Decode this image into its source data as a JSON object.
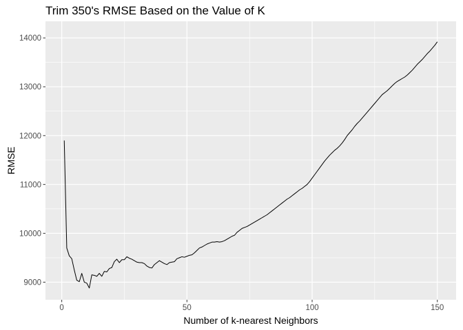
{
  "chart_data": {
    "type": "line",
    "title": "Trim 350's RMSE Based on the Value of K",
    "xlabel": "Number of k-nearest Neighbors",
    "ylabel": "RMSE",
    "xlim": [
      -6.5,
      157.5
    ],
    "ylim": [
      8640,
      14340
    ],
    "xticks": [
      0,
      50,
      100,
      150
    ],
    "yticks": [
      9000,
      10000,
      11000,
      12000,
      13000,
      14000
    ],
    "grid": true,
    "legend": "none",
    "colors": {
      "panel_bg": "#ebebeb",
      "grid": "#ffffff",
      "line": "#000000"
    },
    "series": [
      {
        "x": [
          1,
          2,
          3,
          4,
          5,
          6,
          7,
          8,
          9,
          10,
          11,
          12,
          13,
          14,
          15,
          16,
          17,
          18,
          19,
          20,
          21,
          22,
          23,
          24,
          25,
          26,
          27,
          28,
          29,
          30,
          31,
          32,
          33,
          34,
          35,
          36,
          37,
          38,
          39,
          40,
          41,
          42,
          43,
          44,
          45,
          46,
          47,
          48,
          49,
          50,
          51,
          52,
          53,
          54,
          55,
          56,
          57,
          58,
          59,
          60,
          61,
          62,
          63,
          64,
          65,
          66,
          67,
          68,
          69,
          70,
          71,
          72,
          73,
          74,
          75,
          76,
          77,
          78,
          79,
          80,
          81,
          82,
          83,
          84,
          85,
          86,
          87,
          88,
          89,
          90,
          91,
          92,
          93,
          94,
          95,
          96,
          97,
          98,
          99,
          100,
          101,
          102,
          103,
          104,
          105,
          106,
          107,
          108,
          109,
          110,
          111,
          112,
          113,
          114,
          115,
          116,
          117,
          118,
          119,
          120,
          121,
          122,
          123,
          124,
          125,
          126,
          127,
          128,
          129,
          130,
          131,
          132,
          133,
          134,
          135,
          136,
          137,
          138,
          139,
          140,
          141,
          142,
          143,
          144,
          145,
          146,
          147,
          148,
          149,
          150
        ],
        "values": [
          11900,
          9700,
          9540,
          9480,
          9250,
          9040,
          9010,
          9180,
          9000,
          8980,
          8880,
          9150,
          9140,
          9120,
          9180,
          9120,
          9220,
          9210,
          9280,
          9300,
          9420,
          9470,
          9400,
          9460,
          9460,
          9520,
          9490,
          9470,
          9440,
          9410,
          9400,
          9400,
          9380,
          9330,
          9300,
          9290,
          9360,
          9400,
          9440,
          9410,
          9380,
          9360,
          9400,
          9410,
          9420,
          9480,
          9500,
          9520,
          9510,
          9530,
          9550,
          9560,
          9600,
          9650,
          9700,
          9720,
          9750,
          9780,
          9800,
          9820,
          9820,
          9830,
          9820,
          9830,
          9850,
          9880,
          9910,
          9940,
          9960,
          10020,
          10060,
          10100,
          10120,
          10140,
          10170,
          10200,
          10230,
          10260,
          10290,
          10320,
          10350,
          10380,
          10420,
          10460,
          10500,
          10540,
          10580,
          10620,
          10660,
          10700,
          10730,
          10770,
          10810,
          10850,
          10890,
          10920,
          10960,
          11000,
          11060,
          11130,
          11200,
          11270,
          11340,
          11410,
          11480,
          11540,
          11600,
          11650,
          11700,
          11740,
          11790,
          11850,
          11920,
          12000,
          12060,
          12120,
          12190,
          12250,
          12300,
          12360,
          12420,
          12480,
          12540,
          12600,
          12660,
          12720,
          12780,
          12840,
          12880,
          12920,
          12970,
          13020,
          13070,
          13110,
          13140,
          13170,
          13200,
          13240,
          13290,
          13340,
          13400,
          13460,
          13510,
          13560,
          13620,
          13680,
          13730,
          13790,
          13850,
          13920
        ]
      }
    ]
  }
}
